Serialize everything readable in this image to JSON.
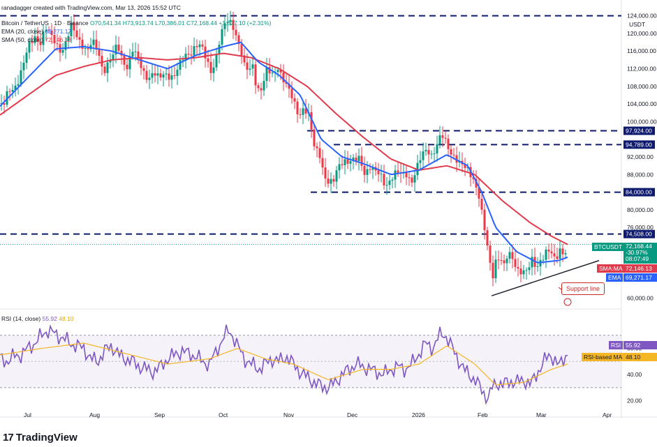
{
  "watermark": "ranadagger created with TradingView.com, Mar 13, 2026 15:52 UTC",
  "symbol": "Bitcoin / TetherUS · 1D · Binance",
  "ohlc": {
    "o": "O70,541.34",
    "h": "H73,913.74",
    "l": "L70,386.01",
    "c": "C72,168.44",
    "chg": "+1,627.10 (+2.31%)"
  },
  "ema_legend": {
    "label": "EMA (20, close)",
    "value": "69,271.17"
  },
  "sma_legend": {
    "label": "SMA (50, close)",
    "value": "72,146.13"
  },
  "rsi_legend": {
    "label": "RSI (14, close)",
    "value": "55.92",
    "ma": "48.10"
  },
  "currency": "USDT",
  "price_badge": {
    "symbol": "BTCUSDT",
    "price": "72,168.44",
    "pct": "-30.97%",
    "countdown": "08:07:49"
  },
  "sma_badge": {
    "label": "SMA:MA",
    "value": "72,146.13"
  },
  "ema_badge": {
    "label": "EMA",
    "value": "69,271.17"
  },
  "rsi_badge": {
    "label": "RSI",
    "value": "55.92"
  },
  "rsi_ma_badge": {
    "label": "RSI-based MA",
    "value": "48.10"
  },
  "annotation": "Support line",
  "brand": "TradingView",
  "colors": {
    "up": "#089981",
    "down": "#f23645",
    "ema": "#2962ff",
    "sma": "#e03b4c",
    "rsi": "#7e57c2",
    "rsi_ma": "#f5b625",
    "level": "#0d1a6e"
  },
  "chart_data": {
    "type": "candlestick",
    "x_ticks": [
      "Jul",
      "Aug",
      "Sep",
      "Oct",
      "Nov",
      "Dec",
      "2026",
      "Feb",
      "Mar",
      "Apr"
    ],
    "price_axis": [
      "124,000.00",
      "120,000.00",
      "116,000.00",
      "112,000.00",
      "108,000.00",
      "104,000.00",
      "100,000.00",
      "92,000.00",
      "88,000.00",
      "80,000.00",
      "76,000.00",
      "60,000.00"
    ],
    "ylim": [
      58000,
      126000
    ],
    "levels": [
      {
        "label": "97,924.00",
        "value": 97924
      },
      {
        "label": "94,789.00",
        "value": 94789
      },
      {
        "label": "84,000.00",
        "value": 84000
      },
      {
        "label": "74,508.00",
        "value": 74508
      }
    ],
    "top_level": 124000,
    "rsi_axis": [
      "60.00",
      "40.00",
      "20.00"
    ],
    "rsi_ylim": [
      15,
      80
    ],
    "rsi_bands": [
      70,
      30
    ],
    "close_anchors": [
      [
        0,
        104000
      ],
      [
        5,
        103000
      ],
      [
        12,
        106500
      ],
      [
        20,
        108000
      ],
      [
        28,
        110500
      ],
      [
        35,
        113500
      ],
      [
        42,
        117000
      ],
      [
        50,
        119500
      ],
      [
        58,
        118500
      ],
      [
        65,
        121000
      ],
      [
        72,
        119000
      ],
      [
        80,
        118000
      ],
      [
        88,
        116500
      ],
      [
        95,
        118000
      ],
      [
        102,
        121000
      ],
      [
        110,
        119500
      ],
      [
        118,
        118000
      ],
      [
        125,
        116000
      ],
      [
        132,
        117500
      ],
      [
        140,
        116000
      ],
      [
        148,
        112000
      ],
      [
        155,
        113500
      ],
      [
        162,
        114500
      ],
      [
        168,
        117000
      ],
      [
        175,
        114500
      ],
      [
        182,
        113000
      ],
      [
        190,
        116000
      ],
      [
        198,
        113500
      ],
      [
        205,
        111500
      ],
      [
        212,
        110500
      ],
      [
        220,
        111000
      ],
      [
        228,
        109000
      ],
      [
        235,
        111000
      ],
      [
        242,
        111000
      ],
      [
        250,
        110500
      ],
      [
        258,
        112500
      ],
      [
        265,
        115000
      ],
      [
        272,
        116000
      ],
      [
        280,
        117500
      ],
      [
        288,
        116500
      ],
      [
        295,
        114000
      ],
      [
        302,
        112000
      ],
      [
        308,
        114000
      ],
      [
        315,
        118500
      ],
      [
        322,
        121500
      ],
      [
        328,
        123000
      ],
      [
        335,
        122000
      ],
      [
        340,
        119000
      ],
      [
        345,
        116000
      ],
      [
        350,
        112000
      ],
      [
        356,
        111000
      ],
      [
        362,
        113000
      ],
      [
        368,
        108000
      ],
      [
        375,
        107500
      ],
      [
        382,
        111000
      ],
      [
        390,
        110500
      ],
      [
        398,
        113000
      ],
      [
        405,
        110000
      ],
      [
        412,
        107000
      ],
      [
        420,
        104500
      ],
      [
        428,
        102000
      ],
      [
        435,
        103500
      ],
      [
        442,
        101000
      ],
      [
        450,
        94000
      ],
      [
        458,
        93000
      ],
      [
        465,
        88000
      ],
      [
        472,
        85500
      ],
      [
        478,
        86000
      ],
      [
        485,
        90000
      ],
      [
        492,
        92000
      ],
      [
        500,
        91000
      ],
      [
        508,
        90500
      ],
      [
        515,
        91500
      ],
      [
        522,
        89000
      ],
      [
        530,
        90000
      ],
      [
        538,
        88000
      ],
      [
        545,
        87500
      ],
      [
        552,
        86000
      ],
      [
        560,
        87500
      ],
      [
        568,
        88000
      ],
      [
        575,
        87500
      ],
      [
        582,
        88500
      ],
      [
        590,
        87000
      ],
      [
        598,
        89500
      ],
      [
        605,
        92000
      ],
      [
        612,
        94000
      ],
      [
        618,
        93000
      ],
      [
        625,
        94500
      ],
      [
        632,
        96500
      ],
      [
        638,
        95000
      ],
      [
        645,
        93500
      ],
      [
        652,
        92500
      ],
      [
        658,
        90500
      ],
      [
        665,
        89000
      ],
      [
        672,
        88500
      ],
      [
        678,
        87500
      ],
      [
        685,
        84500
      ],
      [
        692,
        77000
      ],
      [
        698,
        71000
      ],
      [
        705,
        64500
      ],
      [
        710,
        69000
      ],
      [
        716,
        70000
      ],
      [
        722,
        67000
      ],
      [
        728,
        69500
      ],
      [
        735,
        68500
      ],
      [
        742,
        67000
      ],
      [
        748,
        66500
      ],
      [
        755,
        65500
      ],
      [
        762,
        68000
      ],
      [
        768,
        67000
      ],
      [
        775,
        69500
      ],
      [
        782,
        70500
      ],
      [
        788,
        70000
      ],
      [
        795,
        68000
      ],
      [
        802,
        71500
      ],
      [
        808,
        70500
      ],
      [
        813,
        72168
      ]
    ],
    "rsi_anchors": [
      [
        0,
        52
      ],
      [
        10,
        50
      ],
      [
        20,
        54
      ],
      [
        30,
        55
      ],
      [
        40,
        60
      ],
      [
        50,
        64
      ],
      [
        60,
        70
      ],
      [
        68,
        74
      ],
      [
        75,
        72
      ],
      [
        82,
        70
      ],
      [
        90,
        68
      ],
      [
        100,
        64
      ],
      [
        110,
        62
      ],
      [
        120,
        60
      ],
      [
        130,
        52
      ],
      [
        140,
        50
      ],
      [
        150,
        58
      ],
      [
        160,
        62
      ],
      [
        170,
        55
      ],
      [
        180,
        52
      ],
      [
        190,
        50
      ],
      [
        200,
        46
      ],
      [
        210,
        44
      ],
      [
        220,
        42
      ],
      [
        230,
        46
      ],
      [
        240,
        52
      ],
      [
        250,
        55
      ],
      [
        260,
        58
      ],
      [
        270,
        56
      ],
      [
        280,
        54
      ],
      [
        290,
        50
      ],
      [
        300,
        48
      ],
      [
        310,
        58
      ],
      [
        320,
        68
      ],
      [
        328,
        74
      ],
      [
        335,
        68
      ],
      [
        342,
        60
      ],
      [
        350,
        52
      ],
      [
        360,
        48
      ],
      [
        370,
        44
      ],
      [
        380,
        48
      ],
      [
        390,
        52
      ],
      [
        400,
        50
      ],
      [
        410,
        54
      ],
      [
        420,
        48
      ],
      [
        430,
        42
      ],
      [
        440,
        38
      ],
      [
        450,
        34
      ],
      [
        460,
        31
      ],
      [
        470,
        30
      ],
      [
        480,
        34
      ],
      [
        490,
        40
      ],
      [
        500,
        44
      ],
      [
        510,
        48
      ],
      [
        520,
        46
      ],
      [
        530,
        44
      ],
      [
        540,
        42
      ],
      [
        550,
        40
      ],
      [
        560,
        44
      ],
      [
        570,
        46
      ],
      [
        580,
        44
      ],
      [
        590,
        48
      ],
      [
        600,
        56
      ],
      [
        610,
        64
      ],
      [
        620,
        60
      ],
      [
        630,
        70
      ],
      [
        635,
        72
      ],
      [
        640,
        68
      ],
      [
        648,
        60
      ],
      [
        656,
        52
      ],
      [
        664,
        44
      ],
      [
        672,
        40
      ],
      [
        680,
        36
      ],
      [
        688,
        30
      ],
      [
        695,
        24
      ],
      [
        700,
        22
      ],
      [
        705,
        30
      ],
      [
        712,
        34
      ],
      [
        720,
        32
      ],
      [
        730,
        35
      ],
      [
        740,
        34
      ],
      [
        750,
        36
      ],
      [
        760,
        32
      ],
      [
        768,
        40
      ],
      [
        775,
        46
      ],
      [
        782,
        52
      ],
      [
        788,
        56
      ],
      [
        795,
        50
      ],
      [
        800,
        46
      ],
      [
        806,
        52
      ],
      [
        813,
        56
      ]
    ],
    "ema_anchors": [
      [
        0,
        103500
      ],
      [
        40,
        110000
      ],
      [
        80,
        116500
      ],
      [
        120,
        117000
      ],
      [
        160,
        116000
      ],
      [
        200,
        114000
      ],
      [
        240,
        112000
      ],
      [
        280,
        115000
      ],
      [
        320,
        117000
      ],
      [
        345,
        118000
      ],
      [
        370,
        113500
      ],
      [
        400,
        110500
      ],
      [
        430,
        106000
      ],
      [
        460,
        96000
      ],
      [
        490,
        92000
      ],
      [
        520,
        90500
      ],
      [
        560,
        88000
      ],
      [
        600,
        89000
      ],
      [
        640,
        92500
      ],
      [
        670,
        90000
      ],
      [
        690,
        84000
      ],
      [
        710,
        76000
      ],
      [
        740,
        70500
      ],
      [
        770,
        68000
      ],
      [
        800,
        68500
      ],
      [
        813,
        69271
      ]
    ],
    "sma_anchors": [
      [
        0,
        101500
      ],
      [
        40,
        106000
      ],
      [
        80,
        110500
      ],
      [
        120,
        112500
      ],
      [
        160,
        114000
      ],
      [
        200,
        114500
      ],
      [
        240,
        114000
      ],
      [
        280,
        114500
      ],
      [
        320,
        115500
      ],
      [
        360,
        114500
      ],
      [
        400,
        112000
      ],
      [
        440,
        108000
      ],
      [
        480,
        102000
      ],
      [
        520,
        96500
      ],
      [
        560,
        91500
      ],
      [
        600,
        89000
      ],
      [
        640,
        90000
      ],
      [
        680,
        88000
      ],
      [
        720,
        82000
      ],
      [
        760,
        77000
      ],
      [
        790,
        74000
      ],
      [
        813,
        72146
      ]
    ],
    "rsi_ma_anchors": [
      [
        0,
        55
      ],
      [
        60,
        60
      ],
      [
        120,
        64
      ],
      [
        180,
        56
      ],
      [
        240,
        48
      ],
      [
        300,
        52
      ],
      [
        340,
        60
      ],
      [
        380,
        52
      ],
      [
        420,
        48
      ],
      [
        470,
        36
      ],
      [
        520,
        44
      ],
      [
        560,
        44
      ],
      [
        600,
        48
      ],
      [
        640,
        62
      ],
      [
        680,
        48
      ],
      [
        710,
        32
      ],
      [
        750,
        34
      ],
      [
        790,
        44
      ],
      [
        813,
        48.1
      ]
    ],
    "support_line": [
      [
        704,
        60500
      ],
      [
        858,
        68500
      ]
    ]
  }
}
